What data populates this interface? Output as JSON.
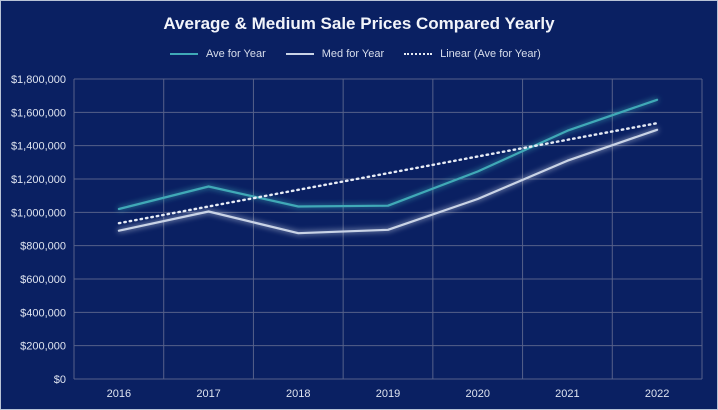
{
  "chart_data": {
    "type": "line",
    "title": "Average & Medium Sale Prices Compared Yearly",
    "x": [
      "2016",
      "2017",
      "2018",
      "2019",
      "2020",
      "2021",
      "2022"
    ],
    "series": [
      {
        "name": "Ave for Year",
        "values": [
          1020000,
          1155000,
          1035000,
          1040000,
          1245000,
          1490000,
          1675000
        ],
        "color": "#3fa9b7",
        "style": "solid"
      },
      {
        "name": "Med for Year",
        "values": [
          890000,
          1005000,
          875000,
          895000,
          1080000,
          1310000,
          1495000
        ],
        "color": "#c9d3e6",
        "style": "solid"
      },
      {
        "name": "Linear (Ave for Year)",
        "values": [
          935000,
          1035000,
          1135000,
          1235000,
          1335000,
          1435000,
          1535000
        ],
        "color": "#e6ebf5",
        "style": "dotted"
      }
    ],
    "yticks": [
      "$0",
      "$200,000",
      "$400,000",
      "$600,000",
      "$800,000",
      "$1,000,000",
      "$1,200,000",
      "$1,400,000",
      "$1,600,000",
      "$1,800,000"
    ],
    "ylim": [
      0,
      1800000
    ],
    "grid": true,
    "legend_position": "top"
  }
}
